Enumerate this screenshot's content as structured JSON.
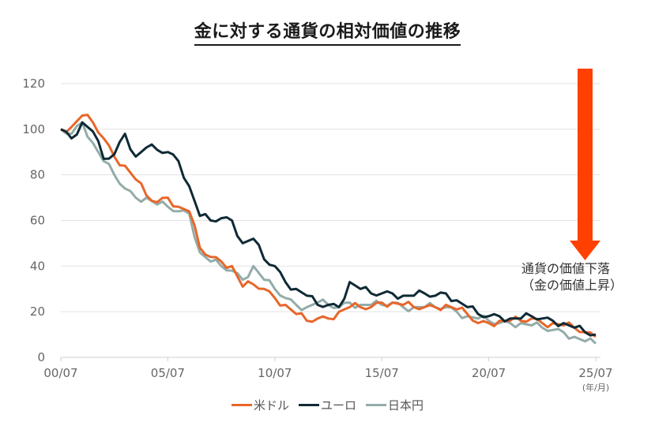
{
  "title": "金に対する通貨の相対価値の推移",
  "annotation": {
    "line1": "通貨の価値下落",
    "line2": "（金の価値上昇）",
    "arrow_color": "#ff4000"
  },
  "axis": {
    "y_ticks": [
      "0",
      "20",
      "40",
      "60",
      "80",
      "100",
      "120"
    ],
    "x_ticks": [
      "00/07",
      "05/07",
      "10/07",
      "15/07",
      "20/07",
      "25/07"
    ],
    "x_unit": "(年/月)"
  },
  "legend": [
    {
      "label": "米ドル",
      "color": "#e8662a"
    },
    {
      "label": "ユーロ",
      "color": "#0f2a35"
    },
    {
      "label": "日本円",
      "color": "#93aca9"
    }
  ],
  "chart_data": {
    "type": "line",
    "title": "金に対する通貨の相対価値の推移",
    "xlabel": "(年/月)",
    "ylabel": "",
    "ylim": [
      0,
      120
    ],
    "xlim": [
      "2000-07",
      "2025-07"
    ],
    "grid": "horizontal",
    "legend_position": "bottom",
    "x": [
      2000.5,
      2001.0,
      2001.5,
      2002.0,
      2002.5,
      2003.0,
      2003.5,
      2004.0,
      2004.5,
      2005.0,
      2005.5,
      2006.0,
      2006.5,
      2007.0,
      2007.5,
      2008.0,
      2008.5,
      2009.0,
      2009.5,
      2010.0,
      2010.5,
      2011.0,
      2011.5,
      2012.0,
      2012.5,
      2013.0,
      2013.5,
      2014.0,
      2014.5,
      2015.0,
      2015.5,
      2016.0,
      2016.5,
      2017.0,
      2017.5,
      2018.0,
      2018.5,
      2019.0,
      2019.5,
      2020.0,
      2020.5,
      2021.0,
      2021.5,
      2022.0,
      2022.5,
      2023.0,
      2023.5,
      2024.0,
      2024.5,
      2025.0,
      2025.5
    ],
    "series": [
      {
        "name": "米ドル",
        "color": "#e8662a",
        "values": [
          100,
          101,
          106,
          103,
          96,
          88,
          84,
          78,
          71,
          68,
          70,
          66,
          64,
          48,
          44,
          42,
          40,
          31,
          32,
          30,
          26,
          23,
          19,
          16,
          17,
          17,
          20,
          22,
          22,
          22,
          24,
          24,
          23,
          22,
          22,
          22,
          23,
          21,
          19,
          15,
          15,
          16,
          16,
          16,
          17,
          15,
          15,
          14,
          13,
          11,
          9
        ]
      },
      {
        "name": "ユーロ",
        "color": "#0f2a35",
        "values": [
          100,
          96,
          103,
          99,
          87,
          89,
          98,
          88,
          92,
          91,
          90,
          86,
          75,
          62,
          60,
          61,
          60,
          50,
          52,
          43,
          40,
          33,
          30,
          27,
          23,
          23,
          22,
          33,
          30,
          28,
          28,
          28,
          27,
          27,
          28,
          27,
          28,
          25,
          22,
          19,
          18,
          18,
          17,
          17,
          18,
          17,
          16,
          15,
          13,
          11,
          10
        ]
      },
      {
        "name": "日本円",
        "color": "#93aca9",
        "values": [
          100,
          98,
          103,
          94,
          86,
          80,
          74,
          70,
          70,
          67,
          66,
          64,
          63,
          46,
          42,
          40,
          38,
          34,
          40,
          34,
          30,
          26,
          23,
          22,
          24,
          23,
          22,
          24,
          23,
          23,
          23,
          24,
          22,
          22,
          22,
          22,
          22,
          20,
          18,
          17,
          16,
          15,
          15,
          15,
          14,
          13,
          12,
          11,
          9,
          7,
          6
        ]
      }
    ]
  }
}
